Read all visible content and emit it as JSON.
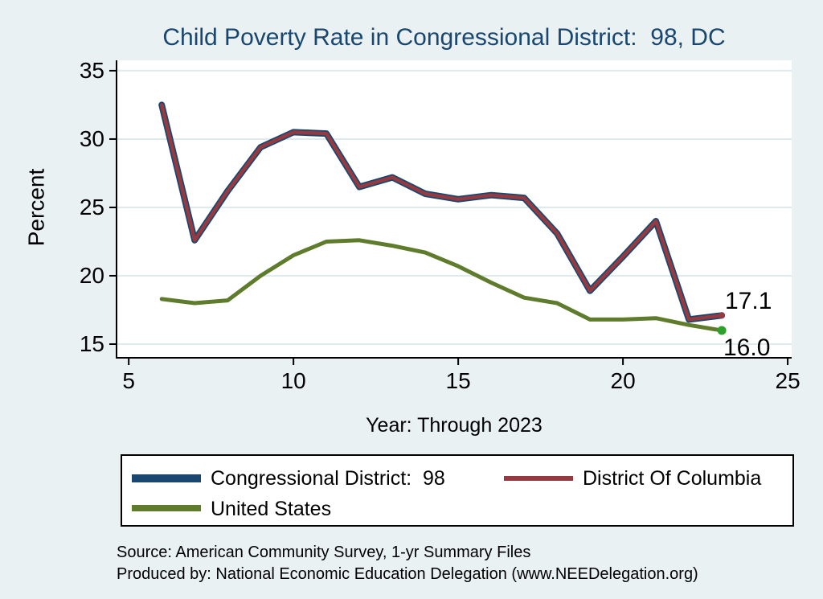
{
  "title": "Child Poverty Rate in Congressional District:  98, DC",
  "chart_data": {
    "type": "line",
    "title": "Child Poverty Rate in Congressional District:  98, DC",
    "xlabel": "Year: Through 2023",
    "ylabel": "Percent",
    "x": [
      6,
      7,
      8,
      9,
      10,
      11,
      12,
      13,
      14,
      15,
      16,
      17,
      18,
      19,
      20,
      21,
      22,
      23
    ],
    "series": [
      {
        "name": "Congressional District:  98",
        "color": "#1a476f",
        "values": [
          32.5,
          22.6,
          26.2,
          29.4,
          30.5,
          30.4,
          26.5,
          27.2,
          26.0,
          25.6,
          25.9,
          25.7,
          23.1,
          18.9,
          21.4,
          24.0,
          16.8,
          17.1
        ]
      },
      {
        "name": "District Of Columbia",
        "color": "#953a40",
        "values": [
          32.5,
          22.6,
          26.2,
          29.4,
          30.5,
          30.4,
          26.5,
          27.2,
          26.0,
          25.6,
          25.9,
          25.7,
          23.1,
          18.9,
          21.4,
          24.0,
          16.8,
          17.1
        ]
      },
      {
        "name": "United States",
        "color": "#5f7c2d",
        "values": [
          18.3,
          18.0,
          18.2,
          20.0,
          21.5,
          22.5,
          22.6,
          22.2,
          21.7,
          20.7,
          19.5,
          18.4,
          18.0,
          16.8,
          16.8,
          16.9,
          16.4,
          16.0
        ]
      }
    ],
    "xticks": [
      5,
      10,
      15,
      20,
      25
    ],
    "yticks": [
      15,
      20,
      25,
      30,
      35
    ],
    "xlim": [
      4.63,
      25.12
    ],
    "ylim": [
      14.0,
      35.76
    ],
    "grid": true,
    "legend_position": "bottom",
    "end_labels": [
      {
        "text": "17.1",
        "value": 17.1,
        "series": "District Of Columbia"
      },
      {
        "text": "16.0",
        "value": 16.0,
        "series": "United States"
      }
    ]
  },
  "legend": {
    "items": [
      {
        "label": "Congressional District:  98",
        "color": "#1a476f"
      },
      {
        "label": "District Of Columbia",
        "color": "#953a40"
      },
      {
        "label": "United States",
        "color": "#5f7c2d"
      }
    ]
  },
  "footer": {
    "line1": "Source: American Community Survey, 1-yr Summary Files",
    "line2": "Produced by: National Economic Education Delegation (www.NEEDelegation.org)"
  },
  "colors": {
    "background": "#eaf1f3",
    "plot_background": "#ffffff",
    "title": "#1a476f",
    "gridline": "#dfeaee",
    "axis": "#000000",
    "us_end_marker": "#2aa22a"
  }
}
